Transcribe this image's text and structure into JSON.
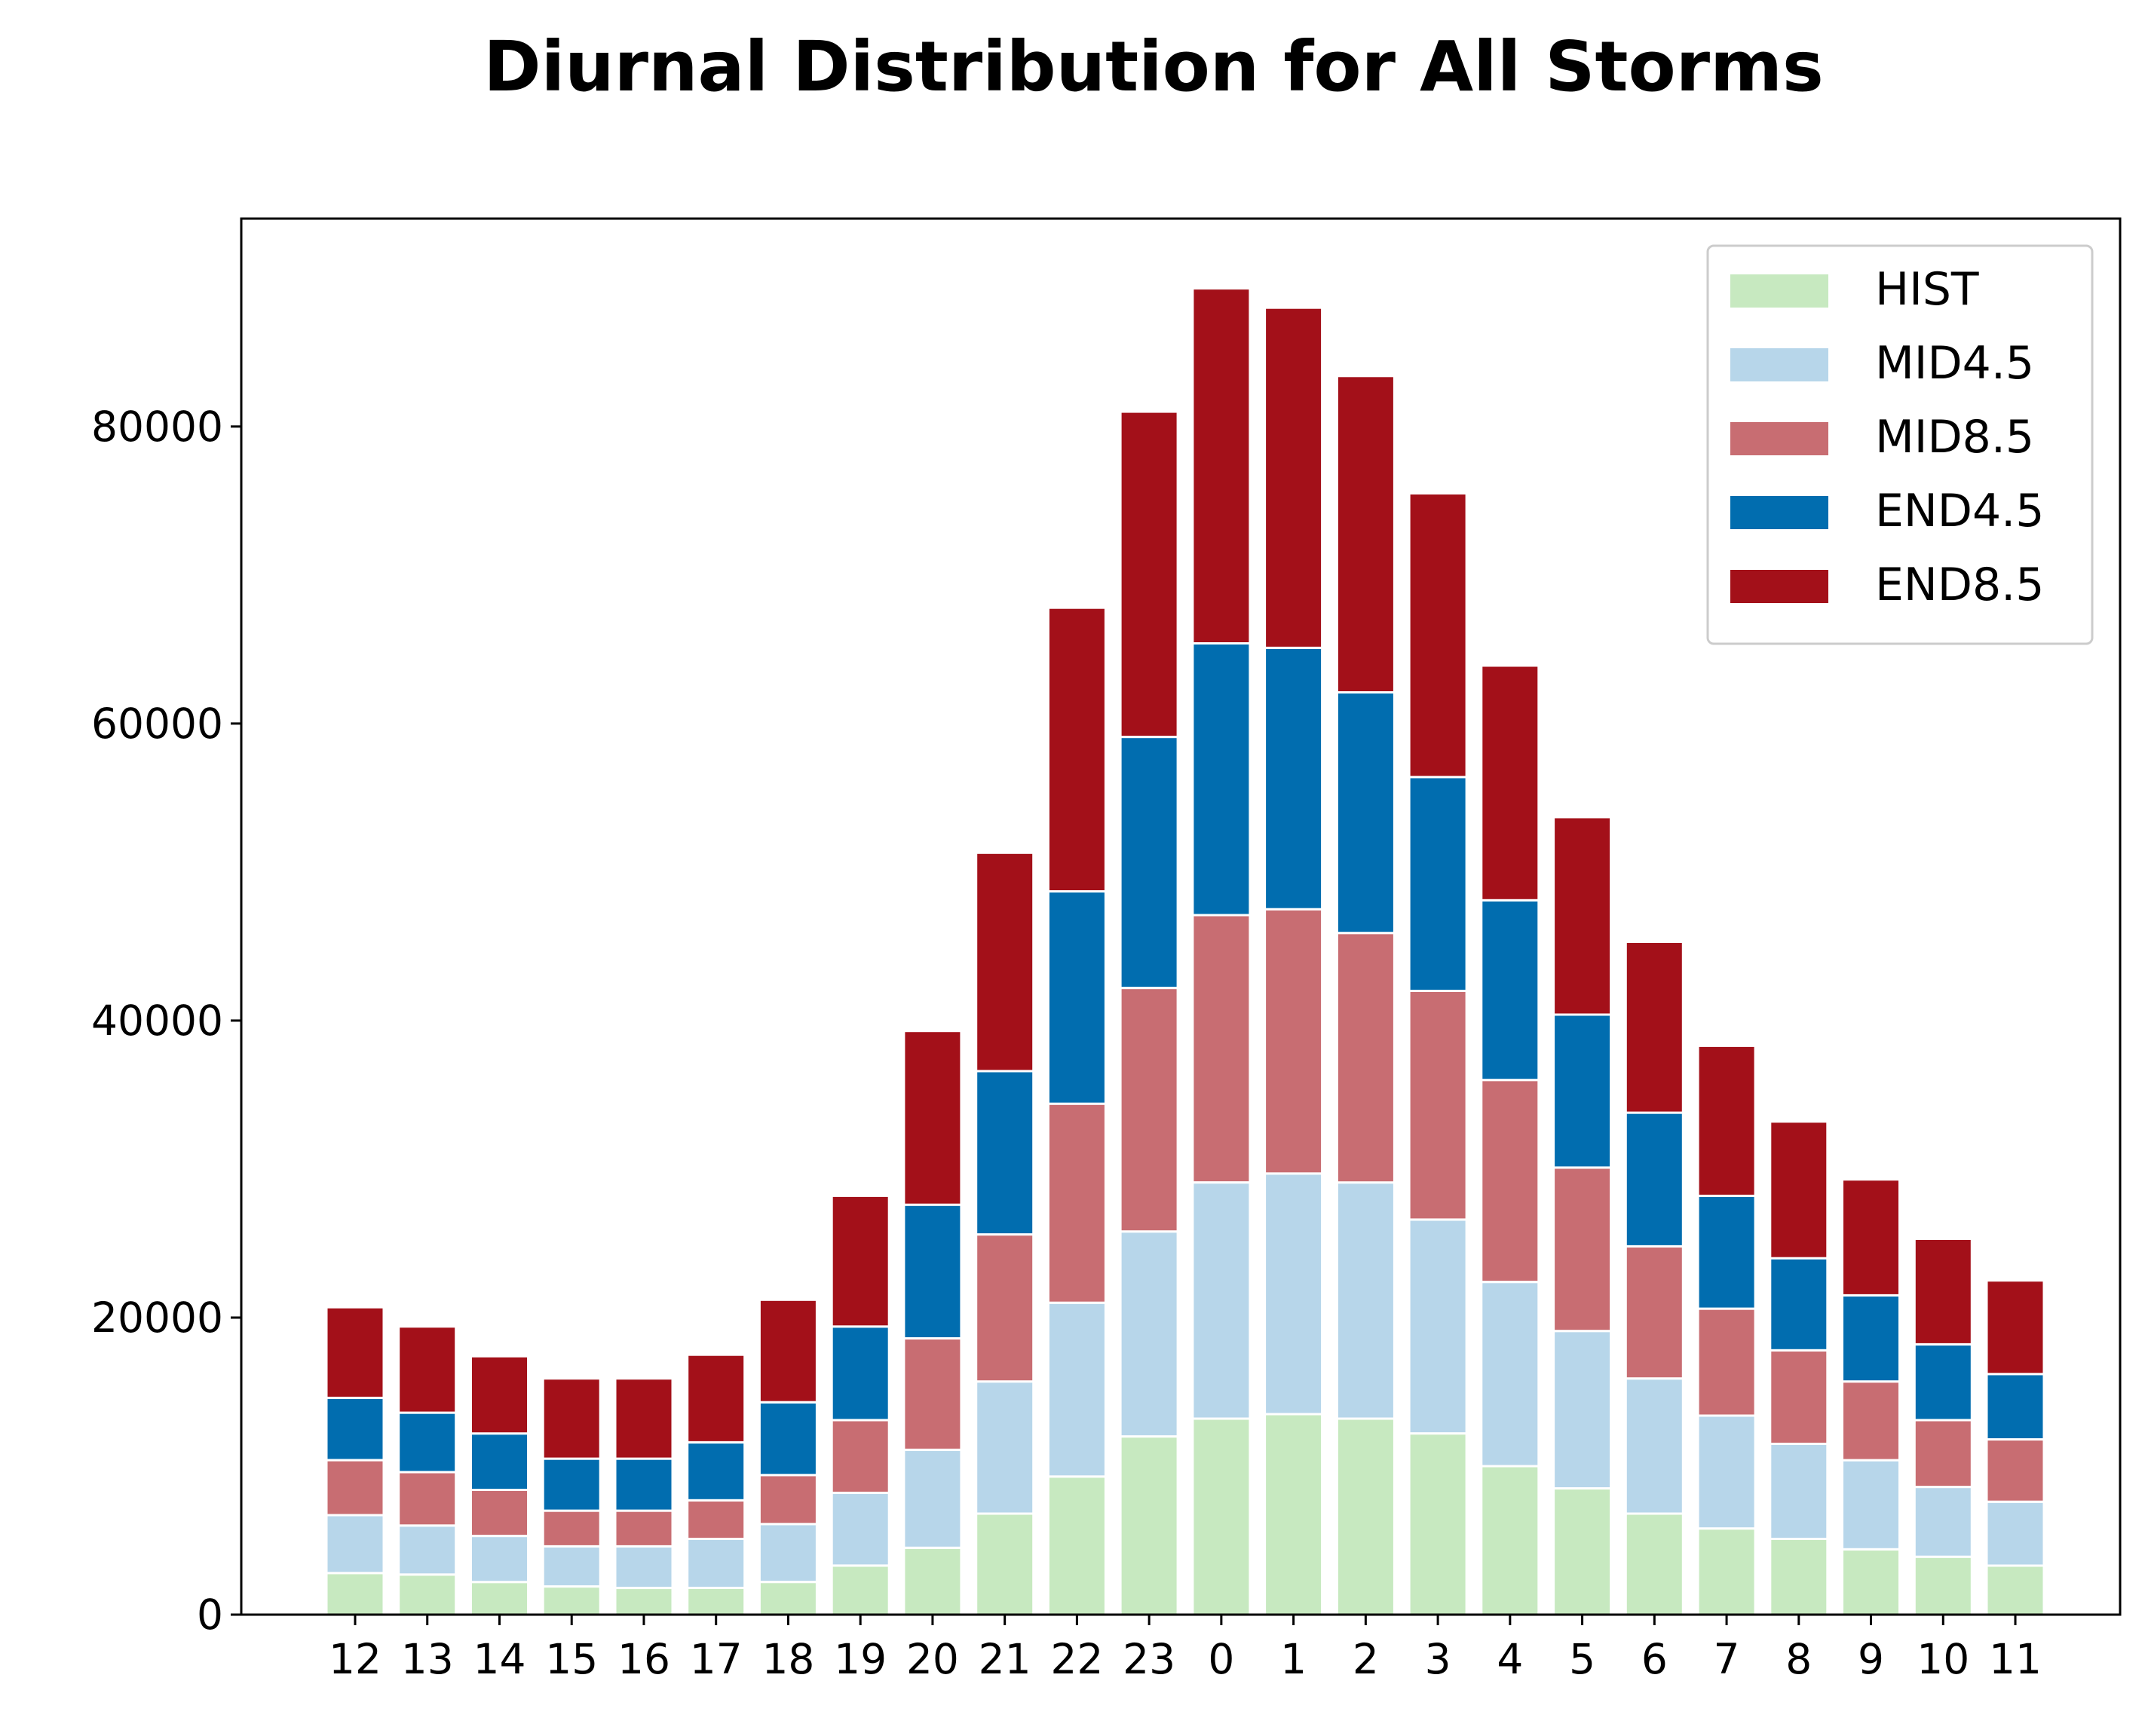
{
  "chart_data": {
    "type": "bar",
    "stacked": true,
    "title": "Diurnal Distribution for All Storms",
    "xlabel": "",
    "ylabel": "",
    "categories": [
      "12",
      "13",
      "14",
      "15",
      "16",
      "17",
      "18",
      "19",
      "20",
      "21",
      "22",
      "23",
      "0",
      "1",
      "2",
      "3",
      "4",
      "5",
      "6",
      "7",
      "8",
      "9",
      "10",
      "11"
    ],
    "yticks": [
      "0",
      "20000",
      "40000",
      "60000",
      "80000"
    ],
    "ylim": [
      0,
      94000
    ],
    "grid": false,
    "legend_position": "top-right",
    "series": [
      {
        "name": "HIST",
        "color": "#c7e9c0",
        "values": [
          2800,
          2700,
          2200,
          1900,
          1800,
          1800,
          2200,
          3300,
          4500,
          6800,
          9300,
          12000,
          13200,
          13500,
          13200,
          12200,
          10000,
          8500,
          6800,
          5800,
          5100,
          4400,
          3900,
          3300
        ]
      },
      {
        "name": "MID4.5",
        "color": "#b7d6ea",
        "values": [
          3900,
          3300,
          3100,
          2700,
          2800,
          3300,
          3900,
          4900,
          6600,
          8900,
          11700,
          13800,
          15900,
          16200,
          15900,
          14400,
          12400,
          10600,
          9100,
          7600,
          6400,
          6000,
          4700,
          4300
        ]
      },
      {
        "name": "MID8.5",
        "color": "#c86d72",
        "values": [
          3700,
          3600,
          3100,
          2400,
          2400,
          2600,
          3300,
          4900,
          7500,
          9900,
          13400,
          16400,
          18000,
          17800,
          16800,
          15400,
          13600,
          11000,
          8900,
          7200,
          6300,
          5300,
          4500,
          4200
        ]
      },
      {
        "name": "END4.5",
        "color": "#016daf",
        "values": [
          4200,
          4000,
          3800,
          3500,
          3500,
          3900,
          4900,
          6300,
          9000,
          11000,
          14300,
          16900,
          18300,
          17600,
          16200,
          14400,
          12100,
          10300,
          9000,
          7600,
          6200,
          5800,
          5100,
          4400
        ]
      },
      {
        "name": "END8.5",
        "color": "#a31019",
        "values": [
          6100,
          5800,
          5200,
          5400,
          5400,
          5900,
          6900,
          8800,
          11700,
          14700,
          19100,
          21900,
          23900,
          22900,
          21300,
          19100,
          15800,
          13300,
          11500,
          10100,
          9200,
          7800,
          7100,
          6300
        ]
      }
    ]
  }
}
